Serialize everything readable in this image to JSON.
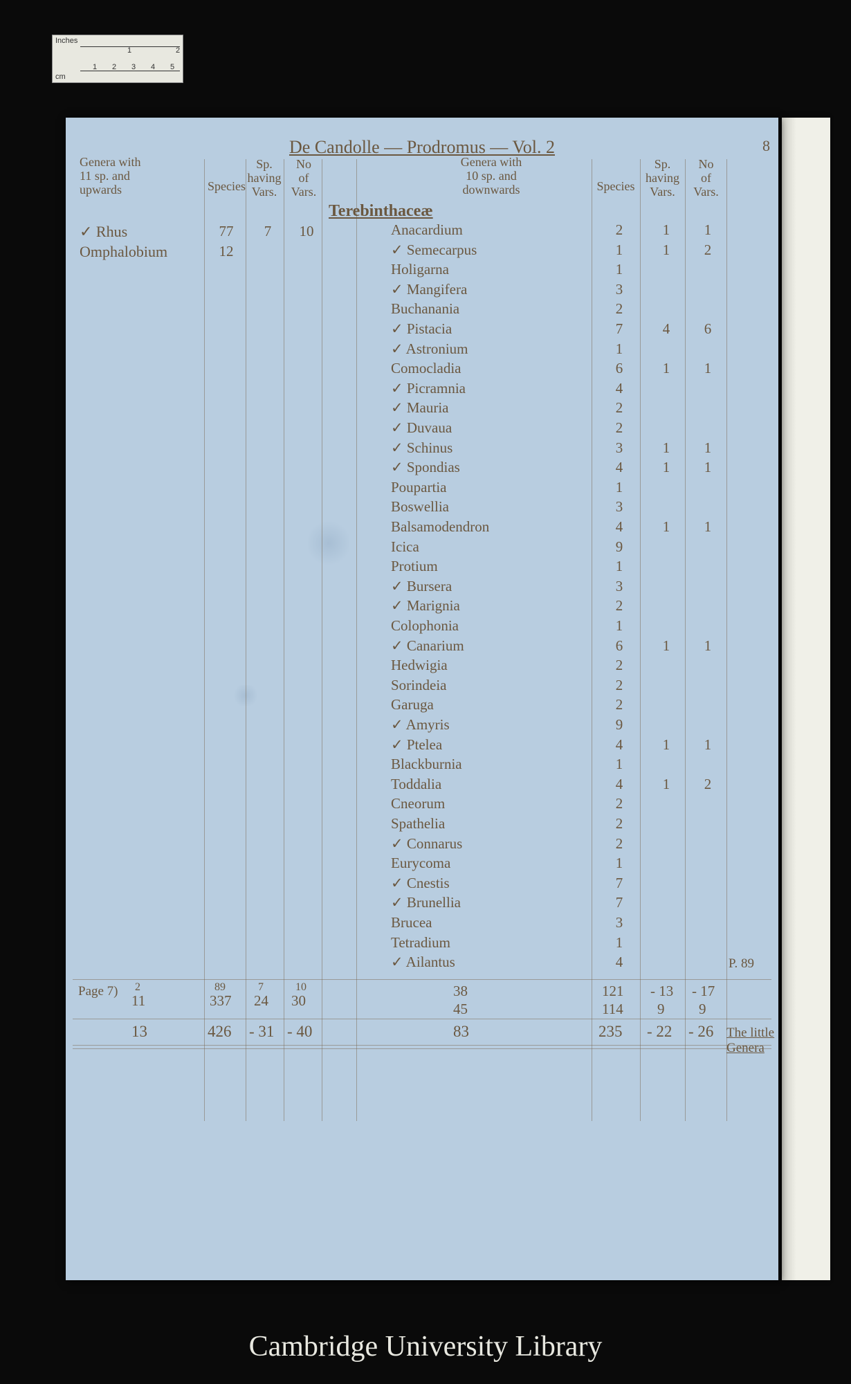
{
  "ruler": {
    "inches_label": "Inches",
    "cm_label": "cm",
    "in_marks": [
      "1",
      "2"
    ],
    "cm_marks": [
      "1",
      "2",
      "3",
      "4",
      "5"
    ]
  },
  "title": "De Candolle — Prodromus — Vol. 2",
  "page_no": "8",
  "family": "Terebinthaceæ",
  "headers": {
    "left_genera": "Genera with\n11 sp. and\nupwards",
    "species": "Species",
    "sp_vars": "Sp.\nhaving\nVars.",
    "no_vars": "No\nof\nVars.",
    "right_genera": "Genera with\n10 sp. and\ndownwards",
    "r_species": "Species",
    "r_sp_vars": "Sp.\nhaving\nVars.",
    "r_no_vars": "No\nof\nVars."
  },
  "left_rows": [
    {
      "name": "✓ Rhus",
      "sp": "77",
      "hv": "7",
      "nv": "10"
    },
    {
      "name": "Omphalobium",
      "sp": "12",
      "hv": "",
      "nv": ""
    }
  ],
  "right_rows": [
    {
      "name": "Anacardium",
      "sp": "2",
      "hv": "1",
      "nv": "1"
    },
    {
      "name": "✓ Semecarpus",
      "sp": "1",
      "hv": "1",
      "nv": "2"
    },
    {
      "name": "Holigarna",
      "sp": "1",
      "hv": "",
      "nv": ""
    },
    {
      "name": "✓ Mangifera",
      "sp": "3",
      "hv": "",
      "nv": ""
    },
    {
      "name": "Buchanania",
      "sp": "2",
      "hv": "",
      "nv": ""
    },
    {
      "name": "✓ Pistacia",
      "sp": "7",
      "hv": "4",
      "nv": "6"
    },
    {
      "name": "✓ Astronium",
      "sp": "1",
      "hv": "",
      "nv": ""
    },
    {
      "name": "Comocladia",
      "sp": "6",
      "hv": "1",
      "nv": "1"
    },
    {
      "name": "✓ Picramnia",
      "sp": "4",
      "hv": "",
      "nv": ""
    },
    {
      "name": "✓ Mauria",
      "sp": "2",
      "hv": "",
      "nv": ""
    },
    {
      "name": "✓ Duvaua",
      "sp": "2",
      "hv": "",
      "nv": ""
    },
    {
      "name": "✓ Schinus",
      "sp": "3",
      "hv": "1",
      "nv": "1"
    },
    {
      "name": "✓ Spondias",
      "sp": "4",
      "hv": "1",
      "nv": "1"
    },
    {
      "name": "Poupartia",
      "sp": "1",
      "hv": "",
      "nv": ""
    },
    {
      "name": "Boswellia",
      "sp": "3",
      "hv": "",
      "nv": ""
    },
    {
      "name": "Balsamodendron",
      "sp": "4",
      "hv": "1",
      "nv": "1"
    },
    {
      "name": "Icica",
      "sp": "9",
      "hv": "",
      "nv": ""
    },
    {
      "name": "Protium",
      "sp": "1",
      "hv": "",
      "nv": ""
    },
    {
      "name": "✓ Bursera",
      "sp": "3",
      "hv": "",
      "nv": ""
    },
    {
      "name": "✓ Marignia",
      "sp": "2",
      "hv": "",
      "nv": ""
    },
    {
      "name": "Colophonia",
      "sp": "1",
      "hv": "",
      "nv": ""
    },
    {
      "name": "✓ Canarium",
      "sp": "6",
      "hv": "1",
      "nv": "1"
    },
    {
      "name": "Hedwigia",
      "sp": "2",
      "hv": "",
      "nv": ""
    },
    {
      "name": "Sorindeia",
      "sp": "2",
      "hv": "",
      "nv": ""
    },
    {
      "name": "Garuga",
      "sp": "2",
      "hv": "",
      "nv": ""
    },
    {
      "name": "✓ Amyris",
      "sp": "9",
      "hv": "",
      "nv": ""
    },
    {
      "name": "✓ Ptelea",
      "sp": "4",
      "hv": "1",
      "nv": "1"
    },
    {
      "name": "Blackburnia",
      "sp": "1",
      "hv": "",
      "nv": ""
    },
    {
      "name": "Toddalia",
      "sp": "4",
      "hv": "1",
      "nv": "2"
    },
    {
      "name": "Cneorum",
      "sp": "2",
      "hv": "",
      "nv": ""
    },
    {
      "name": "Spathelia",
      "sp": "2",
      "hv": "",
      "nv": ""
    },
    {
      "name": "✓ Connarus",
      "sp": "2",
      "hv": "",
      "nv": ""
    },
    {
      "name": "Eurycoma",
      "sp": "1",
      "hv": "",
      "nv": ""
    },
    {
      "name": "✓ Cnestis",
      "sp": "7",
      "hv": "",
      "nv": ""
    },
    {
      "name": "✓ Brunellia",
      "sp": "7",
      "hv": "",
      "nv": ""
    },
    {
      "name": "Brucea",
      "sp": "3",
      "hv": "",
      "nv": ""
    },
    {
      "name": "Tetradium",
      "sp": "1",
      "hv": "",
      "nv": ""
    },
    {
      "name": "✓ Ailantus",
      "sp": "4",
      "hv": "",
      "nv": ""
    }
  ],
  "side_note": "P. 89",
  "total_label": "Page 7)",
  "totals": {
    "l_count_top": "2",
    "l_count": "11",
    "l_sp_top": "89",
    "l_sp": "337",
    "l_hv_top": "7",
    "l_hv": "24",
    "l_nv_top": "10",
    "l_nv": "30",
    "r_count": "38",
    "r_count2": "45",
    "r_sp": "121",
    "r_hv": "13",
    "r_nv": "17",
    "r_sp2": "114",
    "r_hv2": "9",
    "r_nv2": "9"
  },
  "sums": {
    "l_count": "13",
    "l_sp": "426",
    "l_hv": "31",
    "l_nv": "40",
    "r_count": "83",
    "r_sp": "235",
    "r_hv": "22",
    "r_nv": "26",
    "note": "The little Genera"
  },
  "watermark": "Cambridge University Library"
}
